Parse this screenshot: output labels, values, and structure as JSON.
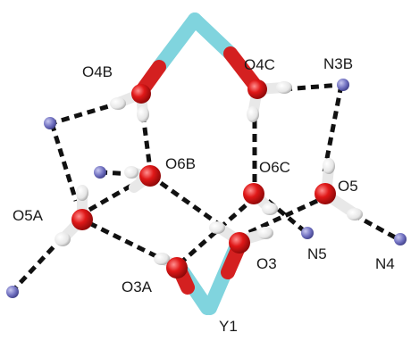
{
  "labels": {
    "o4b": "O4B",
    "o4c": "O4C",
    "n3b": "N3B",
    "o6b": "O6B",
    "o6c": "O6C",
    "o5": "O5",
    "o5a": "O5A",
    "n5": "N5",
    "n4": "N4",
    "o3": "O3",
    "o3a": "O3A",
    "y1": "Y1"
  },
  "colors": {
    "oxygen": "#d42020",
    "hydrogen": "#f2f2f2",
    "nitrogen": "#7a7ac8",
    "yttrium": "#80d4de",
    "hbond": "#111111"
  }
}
